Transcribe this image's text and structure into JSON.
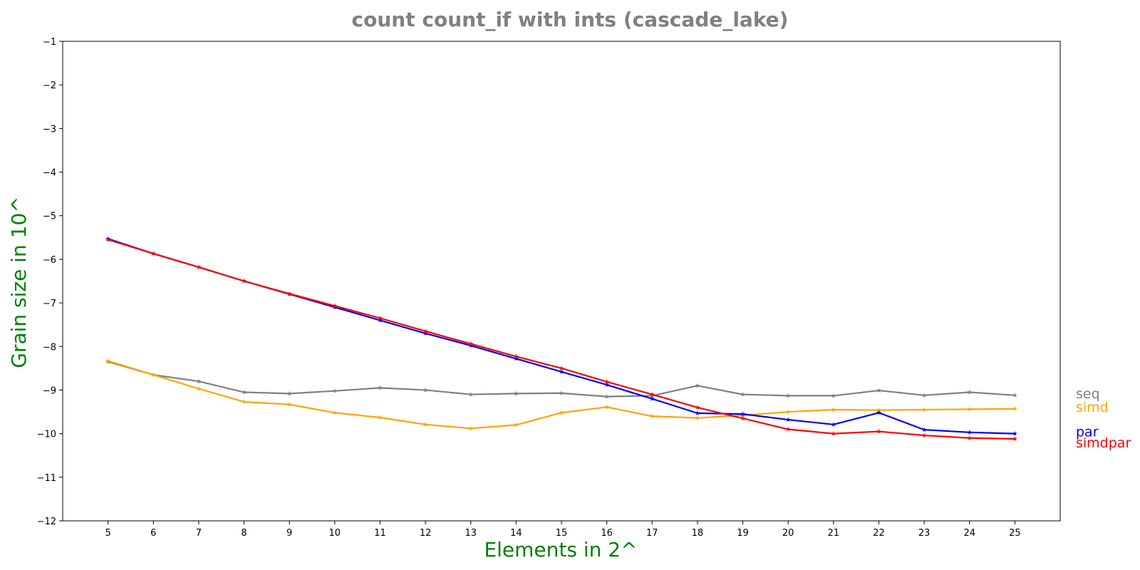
{
  "chart_data": {
    "type": "line",
    "title": "count count_if with ints  (cascade_lake)",
    "xlabel": "Elements in 2^",
    "ylabel": "Grain size in 10^",
    "x": [
      5,
      6,
      7,
      8,
      9,
      10,
      11,
      12,
      13,
      14,
      15,
      16,
      17,
      18,
      19,
      20,
      21,
      22,
      23,
      24,
      25
    ],
    "xlim": [
      4,
      26
    ],
    "ylim": [
      -12,
      -1
    ],
    "xticks": [
      5,
      6,
      7,
      8,
      9,
      10,
      11,
      12,
      13,
      14,
      15,
      16,
      17,
      18,
      19,
      20,
      21,
      22,
      23,
      24,
      25
    ],
    "yticks": [
      -1,
      -2,
      -3,
      -4,
      -5,
      -6,
      -7,
      -8,
      -9,
      -10,
      -11,
      -12
    ],
    "grid": false,
    "legend": "right-side labels",
    "marker": "star",
    "series": [
      {
        "name": "seq",
        "color": "#808080",
        "values": [
          -8.35,
          -8.65,
          -8.8,
          -9.05,
          -9.08,
          -9.02,
          -8.95,
          -9.0,
          -9.1,
          -9.08,
          -9.07,
          -9.15,
          -9.13,
          -8.9,
          -9.1,
          -9.13,
          -9.13,
          -9.01,
          -9.12,
          -9.05,
          -9.12
        ]
      },
      {
        "name": "simd",
        "color": "#FFA500",
        "values": [
          -8.33,
          -8.65,
          -8.97,
          -9.27,
          -9.33,
          -9.52,
          -9.63,
          -9.79,
          -9.88,
          -9.8,
          -9.52,
          -9.39,
          -9.6,
          -9.64,
          -9.58,
          -9.5,
          -9.45,
          -9.46,
          -9.45,
          -9.44,
          -9.43
        ]
      },
      {
        "name": "par",
        "color": "#0000FF",
        "values": [
          -5.53,
          -5.87,
          -6.18,
          -6.5,
          -6.8,
          -7.1,
          -7.4,
          -7.7,
          -7.98,
          -8.28,
          -8.58,
          -8.88,
          -9.2,
          -9.53,
          -9.55,
          -9.68,
          -9.79,
          -9.52,
          -9.91,
          -9.97,
          -10.0
        ]
      },
      {
        "name": "simdpar",
        "color": "#FF0000",
        "values": [
          -5.55,
          -5.87,
          -6.18,
          -6.5,
          -6.79,
          -7.07,
          -7.35,
          -7.65,
          -7.94,
          -8.23,
          -8.5,
          -8.81,
          -9.1,
          -9.4,
          -9.65,
          -9.9,
          -10.0,
          -9.95,
          -10.04,
          -10.1,
          -10.12
        ]
      }
    ]
  }
}
